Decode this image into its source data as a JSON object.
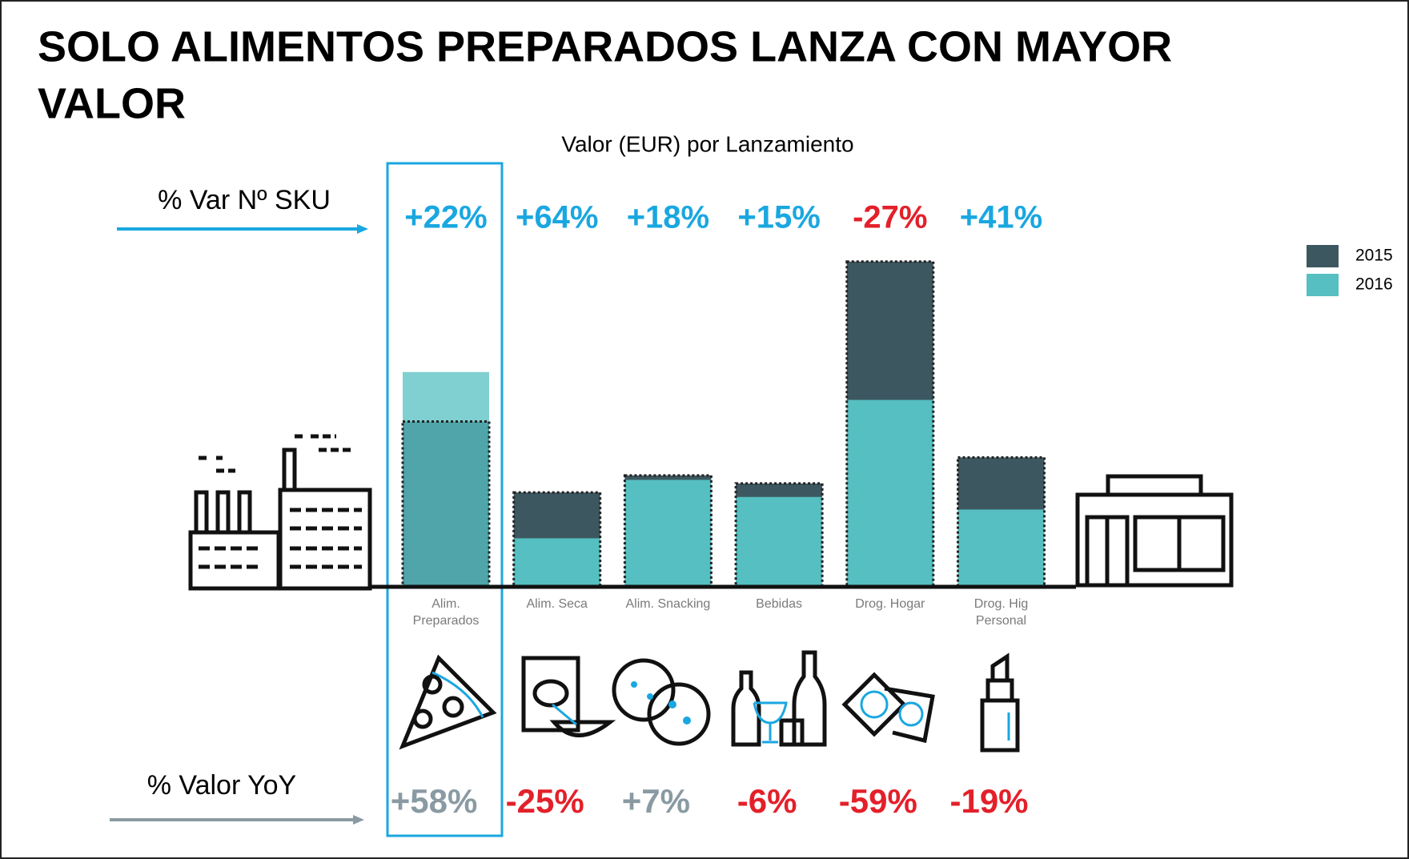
{
  "chart_data": {
    "type": "overlap-bar",
    "title": [
      "SOLO ALIMENTOS PREPARADOS LANZA CON MAYOR",
      "VALOR"
    ],
    "subtitle": "Valor (EUR) por Lanzamiento",
    "categories": [
      "Alim. Preparados",
      "Alim. Seca",
      "Alim. Snacking",
      "Bebidas",
      "Drog. Hogar",
      "Drog. Hig Personal"
    ],
    "series": [
      {
        "name": "2015",
        "color": "#3d5760",
        "values": [
          184,
          105,
          124,
          115,
          362,
          144
        ]
      },
      {
        "name": "2016",
        "color": "#55bfc1",
        "values": [
          239,
          54,
          119,
          100,
          208,
          86
        ]
      }
    ],
    "sku_variation": {
      "label": "% Var Nº SKU",
      "values": [
        22,
        64,
        18,
        15,
        -27,
        41
      ],
      "value_labels": [
        "+22%",
        "+64%",
        "+18%",
        "+15%",
        "-27%",
        "+41%"
      ],
      "colors": [
        "#1aa7e0",
        "#1aa7e0",
        "#1aa7e0",
        "#1aa7e0",
        "#e3202a",
        "#1aa7e0"
      ]
    },
    "yoy_value": {
      "label": "% Valor YoY",
      "values": [
        58,
        -25,
        7,
        -6,
        -59,
        -19
      ],
      "value_labels": [
        "+58%",
        "-25%",
        "+7%",
        "-6%",
        "-59%",
        "-19%"
      ],
      "colors": [
        "#8a9aa3",
        "#e3202a",
        "#8a9aa3",
        "#e3202a",
        "#e3202a",
        "#e3202a"
      ]
    },
    "legend_position": "upper right"
  }
}
